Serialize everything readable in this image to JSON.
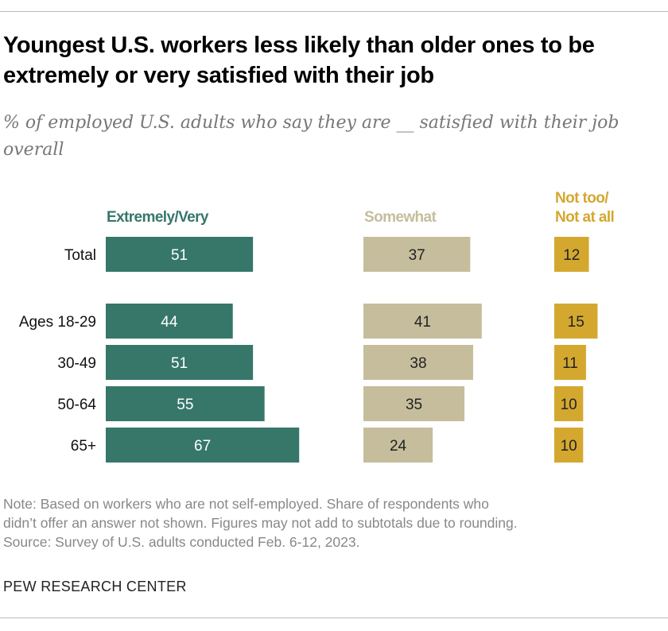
{
  "title": "Youngest U.S. workers less likely than older ones to be extremely or very satisfied with their job",
  "subtitle": "% of employed U.S. adults who say they are __ satisfied with their job overall",
  "notes": [
    "Note: Based on workers who are not self-employed. Share of respondents who",
    "didn’t offer an answer not shown. Figures may not add to subtotals due to rounding.",
    "Source: Survey of U.S. adults conducted Feb. 6-12, 2023."
  ],
  "brand": "PEW RESEARCH CENTER",
  "chart_data": {
    "type": "bar",
    "orientation": "horizontal",
    "categories": [
      "Total",
      "Ages 18-29",
      "30-49",
      "50-64",
      "65+"
    ],
    "series": [
      {
        "name": "Extremely/Very",
        "color": "#36776a",
        "label_color": "#ffffff",
        "values": [
          51,
          44,
          51,
          55,
          67
        ]
      },
      {
        "name": "Somewhat",
        "color": "#c5bd9c",
        "label_color": "#222222",
        "values": [
          37,
          41,
          38,
          35,
          24
        ]
      },
      {
        "name": "Not too/ Not at all",
        "name_lines": [
          "Not too/",
          "Not at all"
        ],
        "color": "#d4a82f",
        "label_color": "#222222",
        "values": [
          12,
          15,
          11,
          10,
          10
        ]
      }
    ],
    "header_colors": [
      "#36776a",
      "#c5bd9c",
      "#d4a82f"
    ],
    "grid": false,
    "legend": "column headers"
  }
}
